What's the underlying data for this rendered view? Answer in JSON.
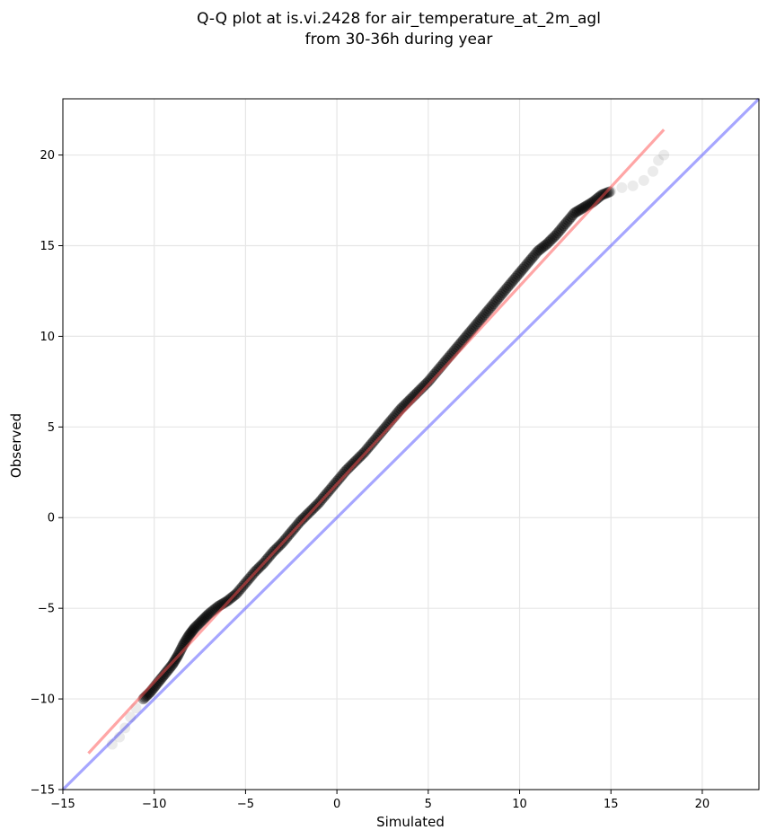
{
  "chart_data": {
    "type": "scatter",
    "title_lines": [
      "Q-Q plot at is.vi.2428 for air_temperature_at_2m_agl",
      "from 30-36h during year"
    ],
    "xlabel": "Simulated",
    "ylabel": "Observed",
    "xlim": [
      -15,
      23.1
    ],
    "ylim": [
      -15,
      23.1
    ],
    "xticks": [
      -15,
      -10,
      -5,
      0,
      5,
      10,
      15,
      20
    ],
    "yticks": [
      -15,
      -10,
      -5,
      0,
      5,
      10,
      15,
      20
    ],
    "xtick_labels": [
      "−15",
      "−10",
      "−5",
      "0",
      "5",
      "10",
      "15",
      "20"
    ],
    "ytick_labels": [
      "−15",
      "−10",
      "−5",
      "0",
      "5",
      "10",
      "15",
      "20"
    ],
    "grid": true,
    "series": [
      {
        "role": "quantile points",
        "color": "#000000",
        "x": [
          -12.3,
          -11.9,
          -11.6,
          -11.3,
          -11.0,
          -10.6,
          -10.2,
          -9.8,
          -9.4,
          -9.0,
          -8.7,
          -8.4,
          -8.1,
          -7.8,
          -7.4,
          -7.0,
          -6.5,
          -6.0,
          -5.5,
          -5.0,
          -4.5,
          -4.0,
          -3.5,
          -3.0,
          -2.5,
          -2.0,
          -1.5,
          -1.0,
          -0.5,
          0.0,
          0.5,
          1.0,
          1.5,
          2.0,
          2.5,
          3.0,
          3.5,
          4.0,
          4.5,
          5.0,
          5.5,
          6.0,
          6.5,
          7.0,
          7.5,
          8.0,
          8.5,
          9.0,
          9.5,
          10.0,
          10.5,
          11.0,
          11.5,
          12.0,
          12.5,
          13.0,
          13.5,
          14.0,
          14.5,
          15.0,
          15.6,
          16.2,
          16.8,
          17.3,
          17.6,
          17.9
        ],
        "y": [
          -12.5,
          -12.1,
          -11.6,
          -11.0,
          -10.5,
          -10.0,
          -9.6,
          -9.1,
          -8.6,
          -8.1,
          -7.6,
          -7.0,
          -6.5,
          -6.1,
          -5.7,
          -5.3,
          -4.9,
          -4.6,
          -4.2,
          -3.6,
          -3.0,
          -2.5,
          -1.9,
          -1.4,
          -0.8,
          -0.2,
          0.3,
          0.8,
          1.4,
          2.0,
          2.6,
          3.1,
          3.6,
          4.2,
          4.8,
          5.4,
          6.0,
          6.5,
          7.0,
          7.5,
          8.1,
          8.7,
          9.3,
          9.9,
          10.5,
          11.1,
          11.7,
          12.3,
          12.9,
          13.5,
          14.1,
          14.7,
          15.1,
          15.6,
          16.2,
          16.8,
          17.1,
          17.4,
          17.8,
          18.0,
          18.2,
          18.3,
          18.6,
          19.1,
          19.7,
          20.0
        ]
      },
      {
        "role": "fit line",
        "color": "#ff4d4d",
        "x": [
          -13.6,
          17.9
        ],
        "y": [
          -13.0,
          21.4
        ]
      },
      {
        "role": "1:1 reference line",
        "color": "#6b6bff",
        "x": [
          -15,
          23.1
        ],
        "y": [
          -15,
          23.1
        ]
      }
    ]
  }
}
